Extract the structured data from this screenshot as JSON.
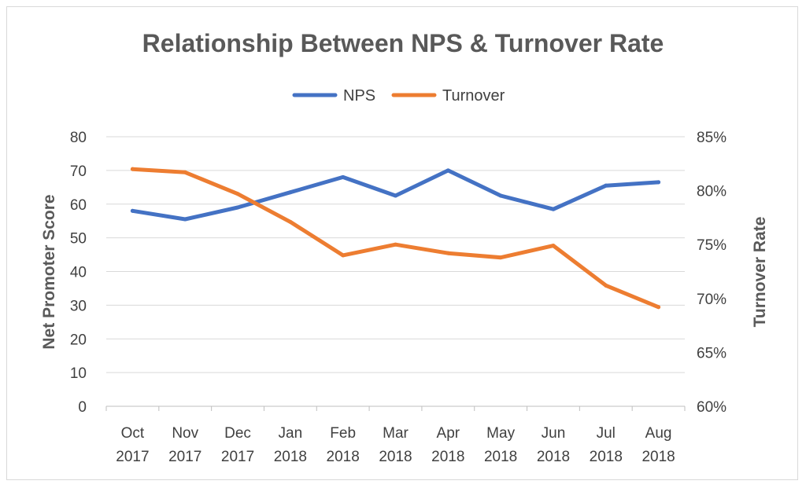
{
  "chart_data": {
    "type": "line",
    "title": "Relationship Between NPS & Turnover Rate",
    "categories": [
      [
        "Oct",
        "2017"
      ],
      [
        "Nov",
        "2017"
      ],
      [
        "Dec",
        "2017"
      ],
      [
        "Jan",
        "2018"
      ],
      [
        "Feb",
        "2018"
      ],
      [
        "Mar",
        "2018"
      ],
      [
        "Apr",
        "2018"
      ],
      [
        "May",
        "2018"
      ],
      [
        "Jun",
        "2018"
      ],
      [
        "Jul",
        "2018"
      ],
      [
        "Aug",
        "2018"
      ]
    ],
    "ylabel": "Net Promoter Score",
    "y2label": "Turnover Rate",
    "ylim": [
      0,
      80
    ],
    "y2lim": [
      0.6,
      0.85
    ],
    "yticks": [
      "0",
      "10",
      "20",
      "30",
      "40",
      "50",
      "60",
      "70",
      "80"
    ],
    "y2ticks": [
      "60%",
      "65%",
      "70%",
      "75%",
      "80%",
      "85%"
    ],
    "grid": true,
    "legend_position": "top",
    "series": [
      {
        "name": "NPS",
        "axis": "left",
        "color": "#4472c4",
        "values": [
          58,
          55.5,
          59,
          63.5,
          68,
          62.5,
          70,
          62.5,
          58.5,
          65.5,
          66.5
        ]
      },
      {
        "name": "Turnover",
        "axis": "right",
        "color": "#ed7d31",
        "values": [
          0.82,
          0.817,
          0.797,
          0.771,
          0.74,
          0.75,
          0.742,
          0.738,
          0.749,
          0.712,
          0.692
        ]
      }
    ]
  }
}
